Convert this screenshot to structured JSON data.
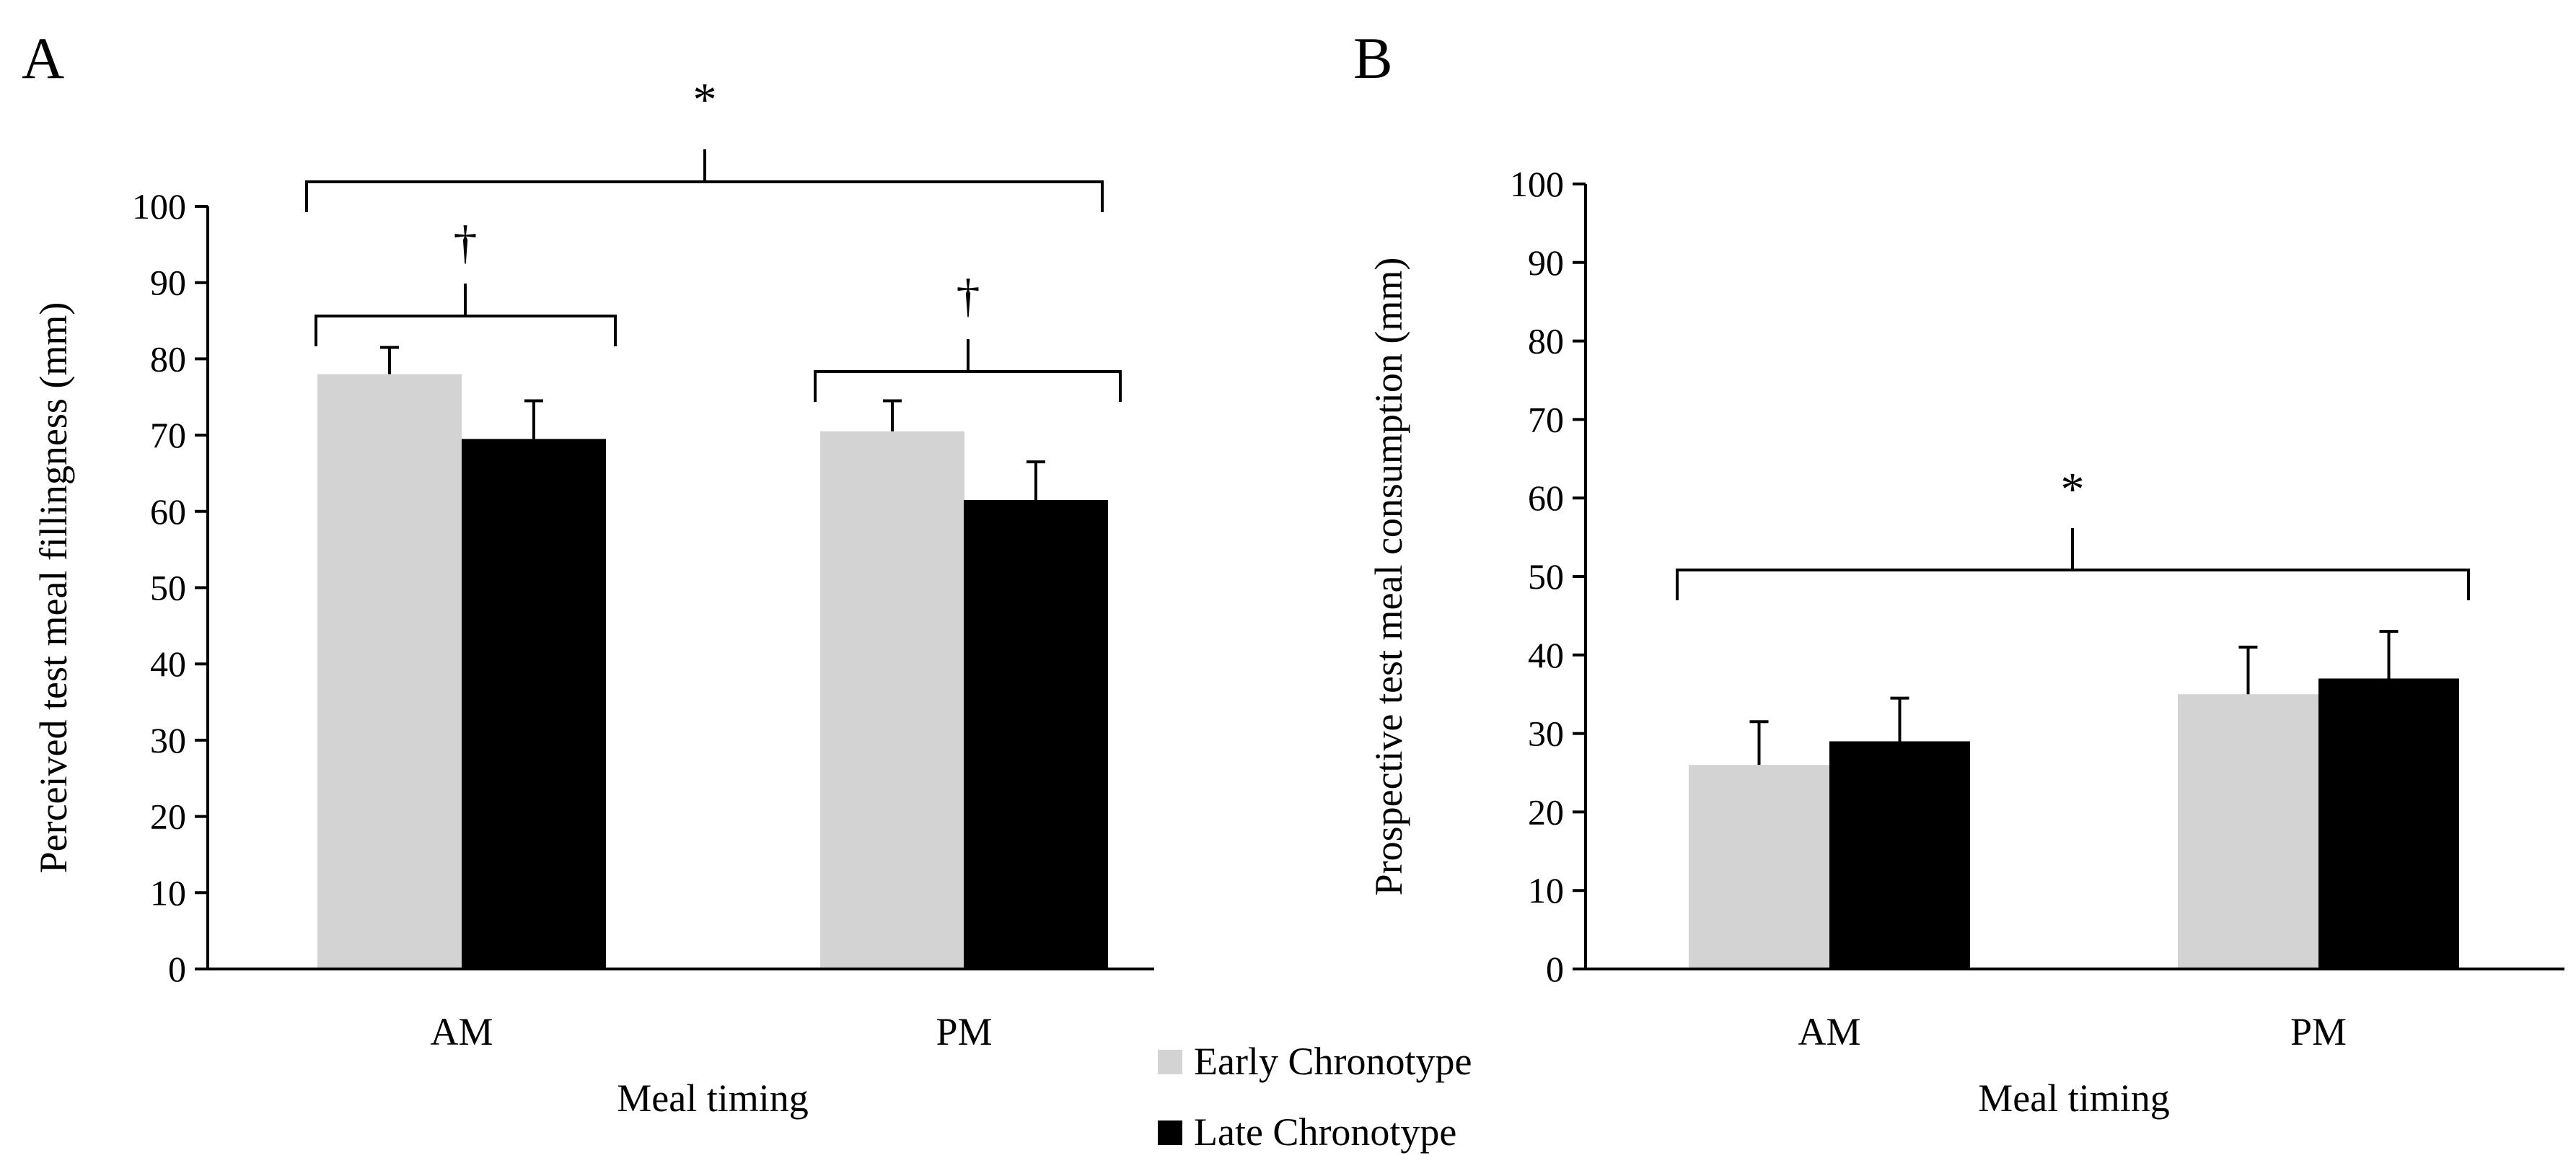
{
  "legend": {
    "entries": [
      {
        "label": "Early Chronotype",
        "color": "#d3d3d3"
      },
      {
        "label": "Late Chronotype",
        "color": "#000000"
      }
    ]
  },
  "chart_data": [
    {
      "panel": "A",
      "type": "bar",
      "title": "",
      "xlabel": "Meal timing",
      "ylabel": "Perceived test meal fillingness (mm)",
      "ylim": [
        0,
        100
      ],
      "yticks": [
        0,
        10,
        20,
        30,
        40,
        50,
        60,
        70,
        80,
        90,
        100
      ],
      "grid": false,
      "categories": [
        "AM",
        "PM"
      ],
      "series": [
        {
          "name": "Early Chronotype",
          "color": "#d3d3d3",
          "values": [
            78,
            70.5
          ],
          "errors": [
            3.5,
            4
          ]
        },
        {
          "name": "Late Chronotype",
          "color": "#000000",
          "values": [
            69.5,
            61.5
          ],
          "errors": [
            5,
            5
          ]
        }
      ],
      "annotations": [
        {
          "symbol": "*",
          "span": "AM–PM"
        },
        {
          "symbol": "†",
          "span": "AM"
        },
        {
          "symbol": "†",
          "span": "PM"
        }
      ]
    },
    {
      "panel": "B",
      "type": "bar",
      "title": "",
      "xlabel": "Meal timing",
      "ylabel": "Prospective test meal consumption (mm)",
      "ylim": [
        0,
        100
      ],
      "yticks": [
        0,
        10,
        20,
        30,
        40,
        50,
        60,
        70,
        80,
        90,
        100
      ],
      "grid": false,
      "categories": [
        "AM",
        "PM"
      ],
      "series": [
        {
          "name": "Early Chronotype",
          "color": "#d3d3d3",
          "values": [
            26,
            35
          ],
          "errors": [
            5.5,
            6
          ]
        },
        {
          "name": "Late Chronotype",
          "color": "#000000",
          "values": [
            29,
            37
          ],
          "errors": [
            5.5,
            6
          ]
        }
      ],
      "annotations": [
        {
          "symbol": "*",
          "span": "AM–PM"
        }
      ]
    }
  ]
}
